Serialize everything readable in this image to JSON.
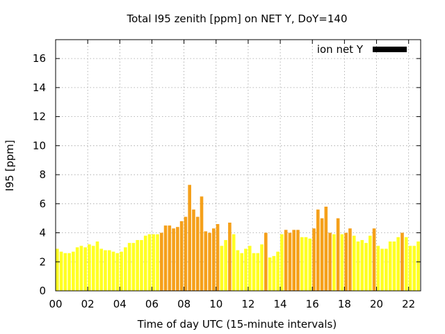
{
  "chart_data": {
    "type": "bar",
    "title": "Total I95 zenith [ppm] on NET Y, DoY=140",
    "xlabel": "Time of day UTC (15-minute intervals)",
    "ylabel": "I95 [ppm]",
    "xlim": [
      0,
      22.75
    ],
    "ylim": [
      0,
      17.3
    ],
    "xtick_labels": [
      "00",
      "02",
      "04",
      "06",
      "08",
      "10",
      "12",
      "14",
      "16",
      "18",
      "20",
      "22"
    ],
    "ytick_labels": [
      "0",
      "2",
      "4",
      "6",
      "8",
      "10",
      "12",
      "14",
      "16"
    ],
    "grid": true,
    "legend": {
      "placement": "top-right",
      "entries": [
        "ion net Y"
      ],
      "swatch_color": "#000000"
    },
    "bar_interval_hours": 0.25,
    "colors": {
      "low": "#ffff22",
      "high": "#f5a01a"
    },
    "threshold": 4,
    "series": [
      {
        "name": "ion net Y",
        "x_start": 0.0,
        "values": [
          2.9,
          2.7,
          2.6,
          2.6,
          2.7,
          3.0,
          3.1,
          3.0,
          3.2,
          3.1,
          3.4,
          2.9,
          2.8,
          2.8,
          2.7,
          2.6,
          2.7,
          3.0,
          3.3,
          3.3,
          3.5,
          3.5,
          3.8,
          3.9,
          3.9,
          3.9,
          4.0,
          4.5,
          4.5,
          4.3,
          4.4,
          4.8,
          5.1,
          7.3,
          5.6,
          5.1,
          6.5,
          4.1,
          4.0,
          4.3,
          4.6,
          3.1,
          3.5,
          4.7,
          3.9,
          2.8,
          2.6,
          2.9,
          3.1,
          2.6,
          2.6,
          3.2,
          4.0,
          2.3,
          2.4,
          2.7,
          3.9,
          4.2,
          4.0,
          4.2,
          4.2,
          3.7,
          3.7,
          3.6,
          4.3,
          5.6,
          5.0,
          5.8,
          4.0,
          3.9,
          5.0,
          3.9,
          4.0,
          4.3,
          3.8,
          3.4,
          3.5,
          3.3,
          3.8,
          4.3,
          3.1,
          2.9,
          2.9,
          3.4,
          3.4,
          3.7,
          4.0,
          3.7,
          3.1,
          3.1,
          3.4,
          3.9
        ]
      }
    ]
  }
}
